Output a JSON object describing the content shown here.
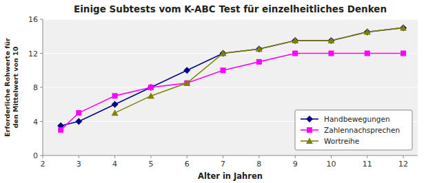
{
  "chart_data": {
    "type": "line",
    "title": "Einige Subtests vom K-ABC Test für einzelheitliches Denken",
    "x_label": "Alter in Jahren",
    "y_label": "Erforderliche Rohwerte für\nden Mittelwert von 10",
    "xlim": [
      2,
      12.4
    ],
    "ylim": [
      0,
      16
    ],
    "xticks": [
      2,
      3,
      4,
      5,
      6,
      7,
      8,
      9,
      10,
      11,
      12
    ],
    "yticks": [
      0,
      4,
      8,
      12,
      16
    ],
    "grid": true,
    "legend": "lower right",
    "series": [
      {
        "name": "Handbewegungen",
        "color": "#00008B",
        "marker": "diamond",
        "x": [
          2.5,
          3,
          4,
          5,
          6,
          7,
          8,
          9,
          10,
          11,
          12
        ],
        "values": [
          3.5,
          4,
          6,
          8,
          10,
          12,
          12.5,
          13.5,
          13.5,
          14.5,
          15
        ]
      },
      {
        "name": "Zahlennachsprechen",
        "color": "#FF00FF",
        "marker": "square",
        "x": [
          2.5,
          3,
          4,
          5,
          6,
          7,
          8,
          9,
          10,
          11,
          12
        ],
        "values": [
          3,
          5,
          7,
          8,
          8.5,
          10,
          11,
          12,
          12,
          12,
          12
        ]
      },
      {
        "name": "Wortreihe",
        "color": "#808000",
        "marker": "triangle",
        "x": [
          4,
          5,
          6,
          7,
          8,
          9,
          10,
          11,
          12
        ],
        "values": [
          5,
          7,
          8.5,
          12,
          12.5,
          13.5,
          13.5,
          14.5,
          15
        ]
      }
    ]
  }
}
